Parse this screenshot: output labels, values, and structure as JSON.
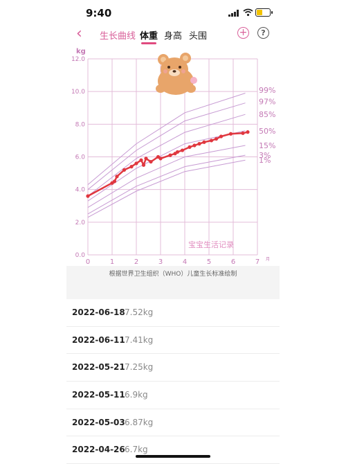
{
  "status": {
    "time": "9:40"
  },
  "nav": {
    "back_icon": "chevron-left-icon",
    "tabs": [
      "生长曲线",
      "体重",
      "身高",
      "头围"
    ],
    "active_tab": 1,
    "add_symbol": "+",
    "help_symbol": "?"
  },
  "chart_data": {
    "type": "line",
    "ylabel": "kg",
    "xlabel": "月",
    "xlim": [
      0,
      7
    ],
    "ylim": [
      0,
      12
    ],
    "x_ticks": [
      0,
      1,
      2,
      3,
      4,
      5,
      6,
      7
    ],
    "y_ticks": [
      "0.0",
      "2.0",
      "4.0",
      "6.0",
      "8.0",
      "10.0",
      "12.0"
    ],
    "percentile_labels": [
      "99%",
      "97%",
      "85%",
      "50%",
      "15%",
      "3%",
      "1%"
    ],
    "percentiles": [
      {
        "name": "99%",
        "x": [
          0,
          2,
          4,
          6.5
        ],
        "y": [
          4.3,
          6.8,
          8.7,
          9.9
        ]
      },
      {
        "name": "97%",
        "x": [
          0,
          2,
          4,
          6.5
        ],
        "y": [
          4.0,
          6.4,
          8.2,
          9.3
        ]
      },
      {
        "name": "85%",
        "x": [
          0,
          2,
          4,
          6.5
        ],
        "y": [
          3.6,
          5.9,
          7.5,
          8.6
        ]
      },
      {
        "name": "50%",
        "x": [
          0,
          2,
          4,
          6.5
        ],
        "y": [
          3.3,
          5.3,
          6.8,
          7.6
        ]
      },
      {
        "name": "15%",
        "x": [
          0,
          2,
          4,
          6.5
        ],
        "y": [
          2.9,
          4.7,
          6.0,
          6.7
        ]
      },
      {
        "name": "3%",
        "x": [
          0,
          2,
          4,
          6.5
        ],
        "y": [
          2.5,
          4.2,
          5.4,
          6.1
        ]
      },
      {
        "name": "1%",
        "x": [
          0,
          2,
          4,
          6.5
        ],
        "y": [
          2.3,
          3.9,
          5.1,
          5.8
        ]
      }
    ],
    "series": [
      {
        "x": [
          0,
          1.0,
          1.1,
          1.2,
          1.5,
          1.8,
          2.0,
          2.2,
          2.3,
          2.4,
          2.6,
          2.9,
          3.0,
          3.4,
          3.6,
          3.7,
          3.9,
          4.2,
          4.4,
          4.6,
          4.8,
          5.1,
          5.3,
          5.5,
          5.9,
          6.4,
          6.6
        ],
        "y": [
          3.6,
          4.4,
          4.5,
          4.8,
          5.2,
          5.4,
          5.6,
          5.8,
          5.5,
          5.9,
          5.7,
          6.0,
          5.9,
          6.1,
          6.2,
          6.3,
          6.4,
          6.6,
          6.7,
          6.8,
          6.9,
          7.0,
          7.1,
          7.25,
          7.41,
          7.45,
          7.52
        ]
      }
    ]
  },
  "watermark": "宝宝生活记录",
  "footer_note": "根据世界卫生组织（WHO）儿童生长标准绘制",
  "records": [
    {
      "date": "2022-06-18",
      "weight": "7.52kg"
    },
    {
      "date": "2022-06-11",
      "weight": "7.41kg"
    },
    {
      "date": "2022-05-21",
      "weight": "7.25kg"
    },
    {
      "date": "2022-05-11",
      "weight": "6.9kg"
    },
    {
      "date": "2022-05-03",
      "weight": "6.87kg"
    },
    {
      "date": "2022-04-26",
      "weight": "6.7kg"
    }
  ]
}
